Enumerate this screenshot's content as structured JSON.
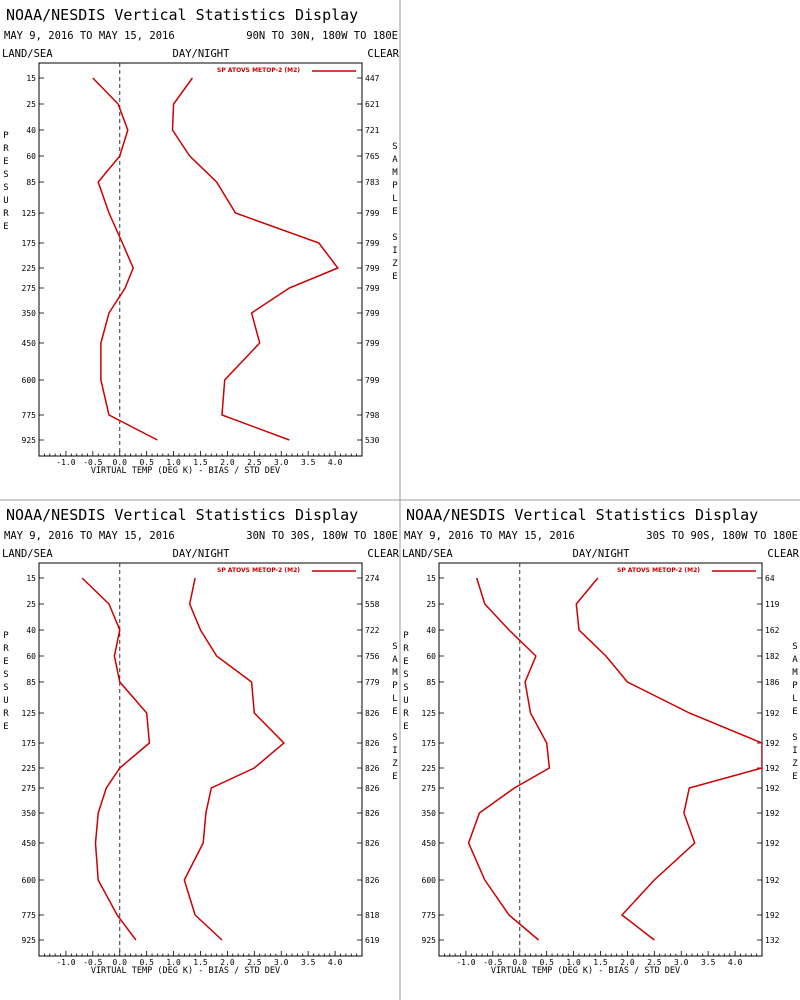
{
  "chart_data": [
    {
      "type": "line",
      "title": "NOAA/NESDIS Vertical Statistics Display",
      "dates": "MAY 9, 2016 TO MAY 15, 2016",
      "region": "90N TO 30N, 180W TO 180E",
      "left_header": "LAND/SEA",
      "center_header": "DAY/NIGHT",
      "right_header": "CLEAR",
      "xlabel": "VIRTUAL TEMP (DEG K) - BIAS / STD DEV",
      "ylabel": "PRESSURE",
      "right_label": "SAMPLE SIZE",
      "xlim": [
        -1.5,
        4.5
      ],
      "xticks": [
        "-1.0",
        "-0.5",
        "0.0",
        "0.5",
        "1.0",
        "1.5",
        "2.0",
        "2.5",
        "3.0",
        "3.5",
        "4.0"
      ],
      "xtick_values": [
        -1.0,
        -0.5,
        0.0,
        0.5,
        1.0,
        1.5,
        2.0,
        2.5,
        3.0,
        3.5,
        4.0
      ],
      "pressure_levels": [
        "15",
        "25",
        "40",
        "60",
        "85",
        "125",
        "175",
        "225",
        "275",
        "350",
        "450",
        "600",
        "775",
        "925"
      ],
      "sample_size": [
        "447",
        "621",
        "721",
        "765",
        "783",
        "799",
        "799",
        "799",
        "799",
        "799",
        "799",
        "799",
        "798",
        "530"
      ],
      "legend": "SP ATOVS METOP-2 (M2)",
      "line_color": "#cc0000",
      "series": [
        {
          "values": [
            -0.5,
            -0.03,
            0.15,
            0.0,
            -0.4,
            -0.2,
            0.05,
            0.25,
            0.1,
            -0.2,
            -0.35,
            -0.35,
            -0.2,
            0.7
          ]
        },
        {
          "values": [
            1.35,
            1.0,
            0.98,
            1.3,
            1.8,
            2.15,
            3.7,
            4.05,
            3.15,
            2.45,
            2.6,
            1.95,
            1.9,
            3.15
          ]
        }
      ]
    },
    {
      "type": "line",
      "title": "NOAA/NESDIS Vertical Statistics Display",
      "dates": "MAY 9, 2016 TO MAY 15, 2016",
      "region": "30N TO 30S, 180W TO 180E",
      "left_header": "LAND/SEA",
      "center_header": "DAY/NIGHT",
      "right_header": "CLEAR",
      "xlabel": "VIRTUAL TEMP (DEG K) - BIAS / STD DEV",
      "ylabel": "PRESSURE",
      "right_label": "SAMPLE SIZE",
      "xlim": [
        -1.5,
        4.5
      ],
      "xticks": [
        "-1.0",
        "-0.5",
        "0.0",
        "0.5",
        "1.0",
        "1.5",
        "2.0",
        "2.5",
        "3.0",
        "3.5",
        "4.0"
      ],
      "xtick_values": [
        -1.0,
        -0.5,
        0.0,
        0.5,
        1.0,
        1.5,
        2.0,
        2.5,
        3.0,
        3.5,
        4.0
      ],
      "pressure_levels": [
        "15",
        "25",
        "40",
        "60",
        "85",
        "125",
        "175",
        "225",
        "275",
        "350",
        "450",
        "600",
        "775",
        "925"
      ],
      "sample_size": [
        "274",
        "558",
        "722",
        "756",
        "779",
        "826",
        "826",
        "826",
        "826",
        "826",
        "826",
        "826",
        "818",
        "619"
      ],
      "legend": "SP ATOVS METOP-2 (M2)",
      "line_color": "#cc0000",
      "series": [
        {
          "values": [
            -0.7,
            -0.2,
            0.0,
            -0.1,
            0.0,
            0.5,
            0.55,
            0.0,
            -0.25,
            -0.4,
            -0.45,
            -0.4,
            -0.05,
            0.3
          ]
        },
        {
          "values": [
            1.4,
            1.3,
            1.5,
            1.8,
            2.45,
            2.5,
            3.05,
            2.5,
            1.7,
            1.6,
            1.55,
            1.2,
            1.4,
            1.9
          ]
        }
      ]
    },
    {
      "type": "line",
      "title": "NOAA/NESDIS Vertical Statistics Display",
      "dates": "MAY 9, 2016 TO MAY 15, 2016",
      "region": "30S TO 90S, 180W TO 180E",
      "left_header": "LAND/SEA",
      "center_header": "DAY/NIGHT",
      "right_header": "CLEAR",
      "xlabel": "VIRTUAL TEMP (DEG K) - BIAS / STD DEV",
      "ylabel": "PRESSURE",
      "right_label": "SAMPLE SIZE",
      "xlim": [
        -1.5,
        4.5
      ],
      "xticks": [
        "-1.0",
        "-0.5",
        "0.0",
        "0.5",
        "1.0",
        "1.5",
        "2.0",
        "2.5",
        "3.0",
        "3.5",
        "4.0"
      ],
      "xtick_values": [
        -1.0,
        -0.5,
        0.0,
        0.5,
        1.0,
        1.5,
        2.0,
        2.5,
        3.0,
        3.5,
        4.0
      ],
      "pressure_levels": [
        "15",
        "25",
        "40",
        "60",
        "85",
        "125",
        "175",
        "225",
        "275",
        "350",
        "450",
        "600",
        "775",
        "925"
      ],
      "sample_size": [
        "64",
        "119",
        "162",
        "182",
        "186",
        "192",
        "192",
        "192",
        "192",
        "192",
        "192",
        "192",
        "192",
        "132"
      ],
      "legend": "SP ATOVS METOP-2 (M2)",
      "line_color": "#cc0000",
      "series": [
        {
          "values": [
            -0.8,
            -0.65,
            -0.2,
            0.3,
            0.1,
            0.2,
            0.5,
            0.55,
            -0.1,
            -0.75,
            -0.95,
            -0.65,
            -0.2,
            0.35
          ]
        },
        {
          "values": [
            1.45,
            1.05,
            1.1,
            1.6,
            2.0,
            3.15,
            4.5,
            4.5,
            3.15,
            3.05,
            3.25,
            2.5,
            1.9,
            2.5
          ]
        }
      ]
    }
  ]
}
